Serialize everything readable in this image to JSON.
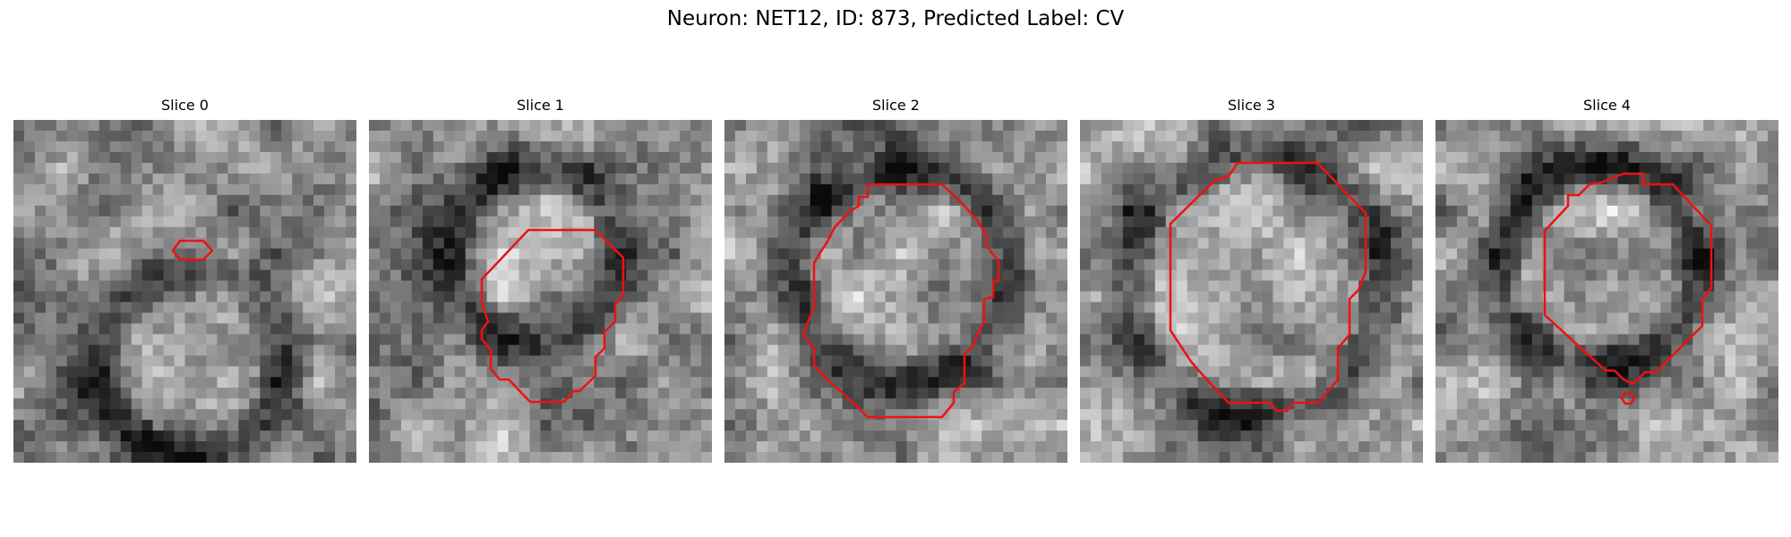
{
  "figure": {
    "title": "Neuron: NET12, ID: 873, Predicted Label: CV",
    "contour_color": "#ee1111",
    "panels": [
      {
        "name": "slice-0",
        "title": "Slice 0",
        "seed": 11
      },
      {
        "name": "slice-1",
        "title": "Slice 1",
        "seed": 23
      },
      {
        "name": "slice-2",
        "title": "Slice 2",
        "seed": 37
      },
      {
        "name": "slice-3",
        "title": "Slice 3",
        "seed": 41
      },
      {
        "name": "slice-4",
        "title": "Slice 4",
        "seed": 59
      }
    ]
  }
}
